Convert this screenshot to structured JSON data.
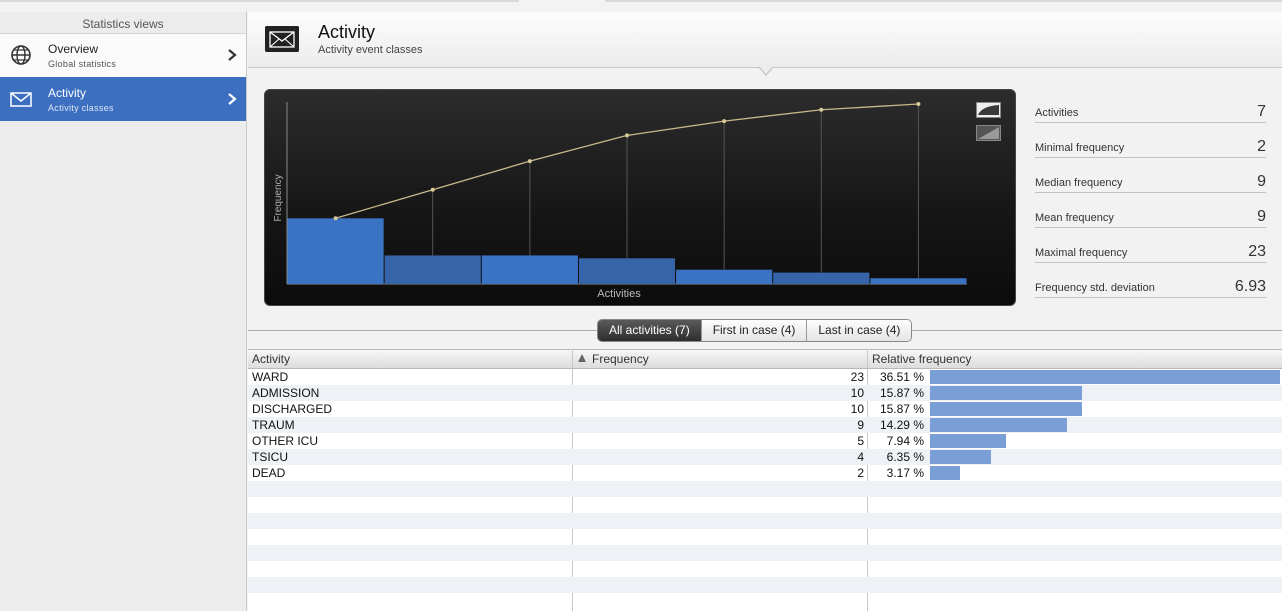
{
  "sidebar": {
    "title": "Statistics views",
    "items": [
      {
        "label": "Overview",
        "sub": "Global statistics",
        "icon": "globe-icon",
        "active": false
      },
      {
        "label": "Activity",
        "sub": "Activity classes",
        "icon": "envelope-icon",
        "active": true
      }
    ]
  },
  "header": {
    "title": "Activity",
    "subtitle": "Activity event classes"
  },
  "chart_data": {
    "type": "bar",
    "categories": [
      "WARD",
      "ADMISSION",
      "DISCHARGED",
      "TRAUM",
      "OTHER ICU",
      "TSICU",
      "DEAD"
    ],
    "values": [
      23,
      10,
      10,
      9,
      5,
      4,
      2
    ],
    "cumulative": [
      23,
      33,
      43,
      52,
      57,
      61,
      63
    ],
    "xlabel": "Activities",
    "ylabel": "Frequency",
    "colors": {
      "bar": "#3a73c4",
      "bar_alt": "#3564a8",
      "line": "#c8b88a",
      "dot": "#d8c998"
    }
  },
  "stats": [
    {
      "label": "Activities",
      "value": "7"
    },
    {
      "label": "Minimal frequency",
      "value": "2"
    },
    {
      "label": "Median frequency",
      "value": "9"
    },
    {
      "label": "Mean frequency",
      "value": "9"
    },
    {
      "label": "Maximal frequency",
      "value": "23"
    },
    {
      "label": "Frequency std. deviation",
      "value": "6.93"
    }
  ],
  "tabs": [
    {
      "label": "All activities (7)",
      "active": true
    },
    {
      "label": "First in case (4)",
      "active": false
    },
    {
      "label": "Last in case (4)",
      "active": false
    }
  ],
  "table": {
    "headers": {
      "activity": "Activity",
      "frequency": "Frequency",
      "relative": "Relative frequency"
    },
    "sort_icon": "sort-ascending-icon",
    "rows": [
      {
        "activity": "WARD",
        "frequency": "23",
        "relative": "36.51 %",
        "fraction": 1.0
      },
      {
        "activity": "ADMISSION",
        "frequency": "10",
        "relative": "15.87 %",
        "fraction": 0.4347
      },
      {
        "activity": "DISCHARGED",
        "frequency": "10",
        "relative": "15.87 %",
        "fraction": 0.4347
      },
      {
        "activity": "TRAUM",
        "frequency": "9",
        "relative": "14.29 %",
        "fraction": 0.3913
      },
      {
        "activity": "OTHER ICU",
        "frequency": "5",
        "relative": "7.94 %",
        "fraction": 0.2174
      },
      {
        "activity": "TSICU",
        "frequency": "4",
        "relative": "6.35 %",
        "fraction": 0.1739
      },
      {
        "activity": "DEAD",
        "frequency": "2",
        "relative": "3.17 %",
        "fraction": 0.087
      }
    ],
    "bar_color": "#7a9fd6"
  }
}
